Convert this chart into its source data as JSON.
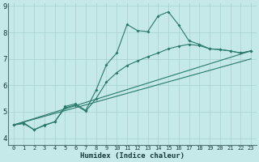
{
  "xlabel": "Humidex (Indice chaleur)",
  "background_color": "#c5e8e8",
  "grid_color": "#a8d0d0",
  "line_color": "#2a7a6a",
  "spine_color": "#507878",
  "xlim": [
    -0.5,
    23.5
  ],
  "ylim": [
    3.75,
    9.1
  ],
  "yticks": [
    4,
    5,
    6,
    7,
    8,
    9
  ],
  "xticks": [
    0,
    1,
    2,
    3,
    4,
    5,
    6,
    7,
    8,
    9,
    10,
    11,
    12,
    13,
    14,
    15,
    16,
    17,
    18,
    19,
    20,
    21,
    22,
    23
  ],
  "line1_x": [
    0,
    1,
    2,
    3,
    4,
    5,
    6,
    7,
    8,
    9,
    10,
    11,
    12,
    13,
    14,
    15,
    16,
    17,
    18,
    19,
    20,
    21,
    22,
    23
  ],
  "line1_y": [
    4.5,
    4.58,
    4.32,
    4.5,
    4.62,
    5.2,
    5.3,
    5.05,
    5.82,
    6.78,
    7.22,
    8.3,
    8.07,
    8.03,
    8.62,
    8.78,
    8.28,
    7.68,
    7.55,
    7.38,
    7.35,
    7.3,
    7.22,
    7.3
  ],
  "line2_x": [
    0,
    1,
    2,
    3,
    4,
    5,
    6,
    7,
    8,
    9,
    10,
    11,
    12,
    13,
    14,
    15,
    16,
    17,
    18,
    19,
    20,
    21,
    22,
    23
  ],
  "line2_y": [
    4.5,
    4.55,
    4.32,
    4.48,
    4.62,
    5.15,
    5.25,
    5.02,
    5.5,
    6.12,
    6.48,
    6.75,
    6.92,
    7.08,
    7.22,
    7.38,
    7.48,
    7.55,
    7.5,
    7.38,
    7.35,
    7.3,
    7.22,
    7.3
  ],
  "line3_x": [
    0,
    23
  ],
  "line3_y": [
    4.5,
    7.3
  ],
  "line4_x": [
    0,
    23
  ],
  "line4_y": [
    4.5,
    7.0
  ]
}
